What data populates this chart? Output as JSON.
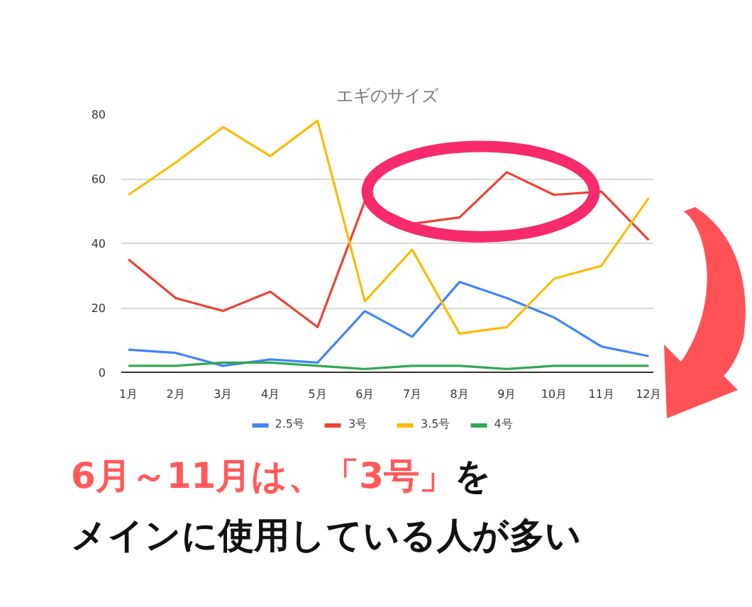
{
  "chart_data": {
    "type": "line",
    "title": "エギのサイズ",
    "categories": [
      "1月",
      "2月",
      "3月",
      "4月",
      "5月",
      "6月",
      "7月",
      "8月",
      "9月",
      "10月",
      "11月",
      "12月"
    ],
    "series": [
      {
        "name": "2.5号",
        "color": "#4285f4",
        "values": [
          7,
          6,
          2,
          4,
          3,
          19,
          11,
          28,
          23,
          17,
          8,
          5
        ]
      },
      {
        "name": "3号",
        "color": "#ea4335",
        "values": [
          35,
          23,
          19,
          25,
          14,
          53,
          46,
          48,
          62,
          55,
          56,
          41
        ]
      },
      {
        "name": "3.5号",
        "color": "#fbbc04",
        "values": [
          55,
          65,
          76,
          67,
          78,
          22,
          38,
          12,
          14,
          29,
          33,
          54
        ]
      },
      {
        "name": "4号",
        "color": "#34a853",
        "values": [
          2,
          2,
          3,
          3,
          2,
          1,
          2,
          2,
          1,
          2,
          2,
          2
        ]
      }
    ],
    "ylim": [
      0,
      80
    ],
    "yticks": [
      0,
      20,
      40,
      60,
      80
    ],
    "grid": "y",
    "legend": "bottom",
    "marker": "none",
    "line_style": "solid",
    "annotations": [
      "6月～11月は、「3号」",
      "を",
      "メインに使用している人が多い"
    ]
  }
}
